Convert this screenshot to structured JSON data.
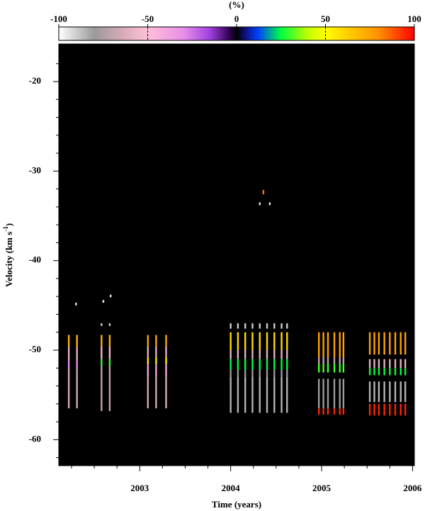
{
  "chart_data": {
    "type": "heatmap",
    "colorbar_label": "(%)",
    "xlabel": "Time (years)",
    "ylabel": {
      "text": "Velocity (km s",
      "sup": "-1",
      "end": ")"
    },
    "xlim": [
      2002.11,
      2006.02
    ],
    "ylim": [
      -62.9,
      -15.8
    ],
    "xticks": [
      2003,
      2004,
      2005,
      2006
    ],
    "yticks": [
      -20,
      -30,
      -40,
      -50,
      -60
    ],
    "xminorticks": [
      2002.25,
      2002.5,
      2002.75,
      2003.25,
      2003.5,
      2003.75,
      2004.25,
      2004.5,
      2004.75,
      2005.25,
      2005.5,
      2005.75
    ],
    "yminorticks": [
      -18,
      -22,
      -24,
      -26,
      -28,
      -32,
      -34,
      -36,
      -38,
      -42,
      -44,
      -46,
      -48,
      -52,
      -54,
      -56,
      -58,
      -62
    ],
    "clim": [
      -100,
      100
    ],
    "cticks": [
      -100,
      -50,
      0,
      50,
      100
    ],
    "cdashed": [
      -50,
      50
    ],
    "colormap": [
      {
        "value": -100,
        "color": "#ffffff"
      },
      {
        "value": -80,
        "color": "#9a9a9a"
      },
      {
        "value": -65,
        "color": "#d4aab6"
      },
      {
        "value": -50,
        "color": "#ffc0d8"
      },
      {
        "value": -30,
        "color": "#e890e8"
      },
      {
        "value": -15,
        "color": "#a040e0"
      },
      {
        "value": -4,
        "color": "#300050"
      },
      {
        "value": 0,
        "color": "#000000"
      },
      {
        "value": 5,
        "color": "#101080"
      },
      {
        "value": 12,
        "color": "#0040ff"
      },
      {
        "value": 25,
        "color": "#00ff40"
      },
      {
        "value": 40,
        "color": "#c0ff00"
      },
      {
        "value": 50,
        "color": "#ffff00"
      },
      {
        "value": 62,
        "color": "#ffd000"
      },
      {
        "value": 80,
        "color": "#ff9000"
      },
      {
        "value": 100,
        "color": "#ff0000"
      }
    ],
    "groups": [
      {
        "x": [
          2002.22,
          2002.31
        ],
        "cells": [
          [
            -48.3,
            -49.6,
            70
          ],
          [
            -49.6,
            -51.2,
            -60
          ],
          [
            -51.2,
            -52.0,
            -30
          ],
          [
            -52.0,
            -56.5,
            -65
          ]
        ]
      },
      {
        "x": [
          2002.58,
          2002.67
        ],
        "cells": [
          [
            -47.0,
            -47.3,
            -90
          ],
          [
            -48.3,
            -49.6,
            70
          ],
          [
            -49.6,
            -51.0,
            -55
          ],
          [
            -51.0,
            -51.8,
            30
          ],
          [
            -51.8,
            -56.8,
            -70
          ]
        ]
      },
      {
        "x": [
          2003.09,
          2003.18,
          2003.29
        ],
        "cells": [
          [
            -48.3,
            -49.6,
            75
          ],
          [
            -49.6,
            -50.8,
            -60
          ],
          [
            -50.8,
            -51.6,
            55
          ],
          [
            -51.6,
            -53.0,
            -40
          ],
          [
            -53.0,
            -56.5,
            -65
          ]
        ]
      },
      {
        "x": [
          2004.0,
          2004.08,
          2004.16,
          2004.24,
          2004.32,
          2004.4,
          2004.48,
          2004.56,
          2004.62
        ],
        "cells": [
          [
            -47.0,
            -47.6,
            -90
          ],
          [
            -48.0,
            -50.0,
            60
          ],
          [
            -50.0,
            -51.0,
            -60
          ],
          [
            -51.0,
            -52.2,
            25
          ],
          [
            -52.2,
            -53.0,
            -80
          ],
          [
            -53.0,
            -57.0,
            -85
          ]
        ]
      },
      {
        "x": [
          2004.97,
          2005.02,
          2005.07,
          2005.14,
          2005.2,
          2005.24
        ],
        "cells": [
          [
            -48.0,
            -50.8,
            75
          ],
          [
            -50.8,
            -51.5,
            -70
          ],
          [
            -51.5,
            -52.5,
            30
          ],
          [
            -53.2,
            -56.5,
            -80
          ],
          [
            -56.5,
            -57.2,
            95
          ]
        ]
      },
      {
        "x": [
          2005.53,
          2005.58,
          2005.63,
          2005.69,
          2005.75,
          2005.81,
          2005.87,
          2005.92
        ],
        "cells": [
          [
            -48.0,
            -50.5,
            75
          ],
          [
            -51.0,
            -52.0,
            -60
          ],
          [
            -52.0,
            -52.8,
            25
          ],
          [
            -53.5,
            -55.8,
            -85
          ],
          [
            -56.0,
            -57.3,
            95
          ]
        ]
      },
      {
        "x": [
          2004.36
        ],
        "cells": [
          [
            -32.1,
            -32.6,
            85
          ]
        ]
      },
      {
        "x": [
          2004.32,
          2004.43
        ],
        "cells": [
          [
            -33.5,
            -33.8,
            -95
          ]
        ]
      },
      {
        "x": [
          2002.3
        ],
        "cells": [
          [
            -44.7,
            -45.0,
            -95
          ]
        ]
      },
      {
        "x": [
          2002.6
        ],
        "cells": [
          [
            -44.4,
            -44.7,
            -95
          ]
        ]
      },
      {
        "x": [
          2002.68
        ],
        "cells": [
          [
            -43.8,
            -44.1,
            -95
          ]
        ]
      }
    ]
  }
}
